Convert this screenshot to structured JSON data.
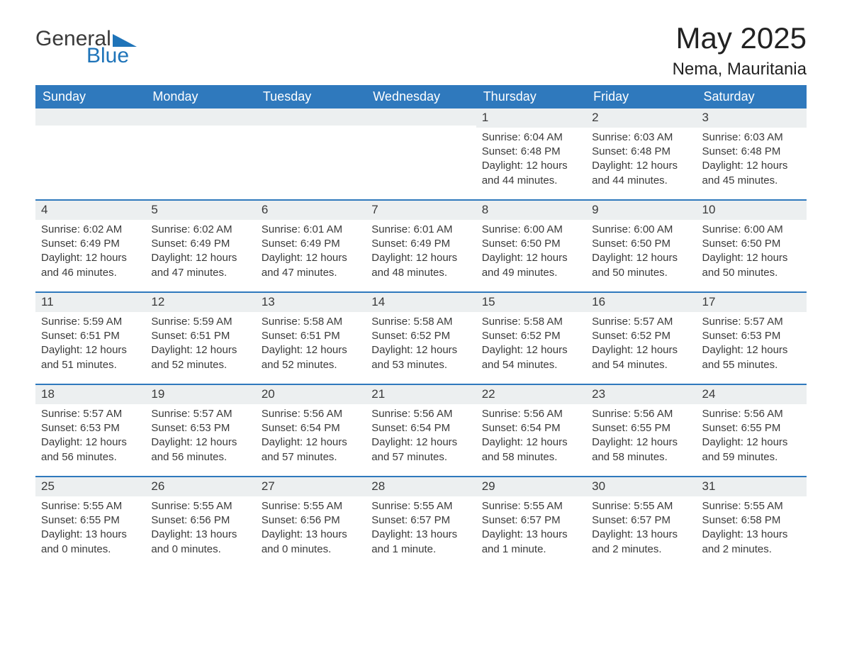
{
  "brand": {
    "word1": "General",
    "word2": "Blue",
    "triangle_color": "#1f74b9",
    "word1_color": "#3a3a3a",
    "word2_color": "#1f74b9"
  },
  "header": {
    "title": "May 2025",
    "location": "Nema, Mauritania",
    "bar_color": "#2f79bd",
    "rule_color": "#2f79bd",
    "daynum_bg": "#eceff0",
    "text_color": "#3a3a3a",
    "background": "#ffffff",
    "title_fontsize": 42,
    "location_fontsize": 24,
    "weekday_fontsize": 18,
    "body_fontsize": 15
  },
  "weekdays": [
    "Sunday",
    "Monday",
    "Tuesday",
    "Wednesday",
    "Thursday",
    "Friday",
    "Saturday"
  ],
  "weeks": [
    [
      null,
      null,
      null,
      null,
      {
        "num": "1",
        "sunrise": "Sunrise: 6:04 AM",
        "sunset": "Sunset: 6:48 PM",
        "daylight": "Daylight: 12 hours and 44 minutes."
      },
      {
        "num": "2",
        "sunrise": "Sunrise: 6:03 AM",
        "sunset": "Sunset: 6:48 PM",
        "daylight": "Daylight: 12 hours and 44 minutes."
      },
      {
        "num": "3",
        "sunrise": "Sunrise: 6:03 AM",
        "sunset": "Sunset: 6:48 PM",
        "daylight": "Daylight: 12 hours and 45 minutes."
      }
    ],
    [
      {
        "num": "4",
        "sunrise": "Sunrise: 6:02 AM",
        "sunset": "Sunset: 6:49 PM",
        "daylight": "Daylight: 12 hours and 46 minutes."
      },
      {
        "num": "5",
        "sunrise": "Sunrise: 6:02 AM",
        "sunset": "Sunset: 6:49 PM",
        "daylight": "Daylight: 12 hours and 47 minutes."
      },
      {
        "num": "6",
        "sunrise": "Sunrise: 6:01 AM",
        "sunset": "Sunset: 6:49 PM",
        "daylight": "Daylight: 12 hours and 47 minutes."
      },
      {
        "num": "7",
        "sunrise": "Sunrise: 6:01 AM",
        "sunset": "Sunset: 6:49 PM",
        "daylight": "Daylight: 12 hours and 48 minutes."
      },
      {
        "num": "8",
        "sunrise": "Sunrise: 6:00 AM",
        "sunset": "Sunset: 6:50 PM",
        "daylight": "Daylight: 12 hours and 49 minutes."
      },
      {
        "num": "9",
        "sunrise": "Sunrise: 6:00 AM",
        "sunset": "Sunset: 6:50 PM",
        "daylight": "Daylight: 12 hours and 50 minutes."
      },
      {
        "num": "10",
        "sunrise": "Sunrise: 6:00 AM",
        "sunset": "Sunset: 6:50 PM",
        "daylight": "Daylight: 12 hours and 50 minutes."
      }
    ],
    [
      {
        "num": "11",
        "sunrise": "Sunrise: 5:59 AM",
        "sunset": "Sunset: 6:51 PM",
        "daylight": "Daylight: 12 hours and 51 minutes."
      },
      {
        "num": "12",
        "sunrise": "Sunrise: 5:59 AM",
        "sunset": "Sunset: 6:51 PM",
        "daylight": "Daylight: 12 hours and 52 minutes."
      },
      {
        "num": "13",
        "sunrise": "Sunrise: 5:58 AM",
        "sunset": "Sunset: 6:51 PM",
        "daylight": "Daylight: 12 hours and 52 minutes."
      },
      {
        "num": "14",
        "sunrise": "Sunrise: 5:58 AM",
        "sunset": "Sunset: 6:52 PM",
        "daylight": "Daylight: 12 hours and 53 minutes."
      },
      {
        "num": "15",
        "sunrise": "Sunrise: 5:58 AM",
        "sunset": "Sunset: 6:52 PM",
        "daylight": "Daylight: 12 hours and 54 minutes."
      },
      {
        "num": "16",
        "sunrise": "Sunrise: 5:57 AM",
        "sunset": "Sunset: 6:52 PM",
        "daylight": "Daylight: 12 hours and 54 minutes."
      },
      {
        "num": "17",
        "sunrise": "Sunrise: 5:57 AM",
        "sunset": "Sunset: 6:53 PM",
        "daylight": "Daylight: 12 hours and 55 minutes."
      }
    ],
    [
      {
        "num": "18",
        "sunrise": "Sunrise: 5:57 AM",
        "sunset": "Sunset: 6:53 PM",
        "daylight": "Daylight: 12 hours and 56 minutes."
      },
      {
        "num": "19",
        "sunrise": "Sunrise: 5:57 AM",
        "sunset": "Sunset: 6:53 PM",
        "daylight": "Daylight: 12 hours and 56 minutes."
      },
      {
        "num": "20",
        "sunrise": "Sunrise: 5:56 AM",
        "sunset": "Sunset: 6:54 PM",
        "daylight": "Daylight: 12 hours and 57 minutes."
      },
      {
        "num": "21",
        "sunrise": "Sunrise: 5:56 AM",
        "sunset": "Sunset: 6:54 PM",
        "daylight": "Daylight: 12 hours and 57 minutes."
      },
      {
        "num": "22",
        "sunrise": "Sunrise: 5:56 AM",
        "sunset": "Sunset: 6:54 PM",
        "daylight": "Daylight: 12 hours and 58 minutes."
      },
      {
        "num": "23",
        "sunrise": "Sunrise: 5:56 AM",
        "sunset": "Sunset: 6:55 PM",
        "daylight": "Daylight: 12 hours and 58 minutes."
      },
      {
        "num": "24",
        "sunrise": "Sunrise: 5:56 AM",
        "sunset": "Sunset: 6:55 PM",
        "daylight": "Daylight: 12 hours and 59 minutes."
      }
    ],
    [
      {
        "num": "25",
        "sunrise": "Sunrise: 5:55 AM",
        "sunset": "Sunset: 6:55 PM",
        "daylight": "Daylight: 13 hours and 0 minutes."
      },
      {
        "num": "26",
        "sunrise": "Sunrise: 5:55 AM",
        "sunset": "Sunset: 6:56 PM",
        "daylight": "Daylight: 13 hours and 0 minutes."
      },
      {
        "num": "27",
        "sunrise": "Sunrise: 5:55 AM",
        "sunset": "Sunset: 6:56 PM",
        "daylight": "Daylight: 13 hours and 0 minutes."
      },
      {
        "num": "28",
        "sunrise": "Sunrise: 5:55 AM",
        "sunset": "Sunset: 6:57 PM",
        "daylight": "Daylight: 13 hours and 1 minute."
      },
      {
        "num": "29",
        "sunrise": "Sunrise: 5:55 AM",
        "sunset": "Sunset: 6:57 PM",
        "daylight": "Daylight: 13 hours and 1 minute."
      },
      {
        "num": "30",
        "sunrise": "Sunrise: 5:55 AM",
        "sunset": "Sunset: 6:57 PM",
        "daylight": "Daylight: 13 hours and 2 minutes."
      },
      {
        "num": "31",
        "sunrise": "Sunrise: 5:55 AM",
        "sunset": "Sunset: 6:58 PM",
        "daylight": "Daylight: 13 hours and 2 minutes."
      }
    ]
  ]
}
